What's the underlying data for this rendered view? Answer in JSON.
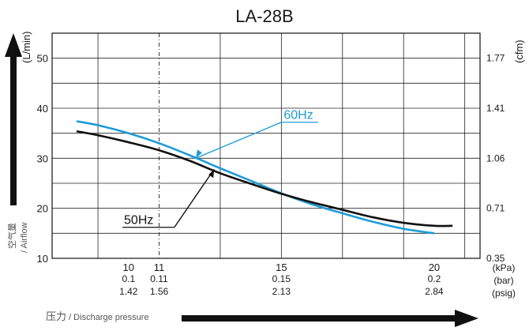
{
  "chart_data": {
    "type": "line",
    "title": "LA-28B",
    "ylabel": "(L/min)",
    "ylabel_right": "(cfm)",
    "ylabel_side_cn": "空气量",
    "ylabel_side_en": "/ Airflow",
    "xlabel_cn": "压力",
    "xlabel_en": " / Discharge pressure",
    "xlim": [
      7.5,
      21.5
    ],
    "ylim": [
      10,
      55
    ],
    "y_ticks": [
      10,
      20,
      30,
      40,
      50
    ],
    "y_ticks_right": [
      "0.35",
      "0.71",
      "1.06",
      "1.41",
      "1.77"
    ],
    "x_ticks": [
      {
        "x": 10,
        "kpa": "10",
        "bar": "0.1",
        "psig": "1.42"
      },
      {
        "x": 11,
        "kpa": "11",
        "bar": "0.11",
        "psig": "1.56"
      },
      {
        "x": 15,
        "kpa": "15",
        "bar": "0.15",
        "psig": "2.13"
      },
      {
        "x": 20,
        "kpa": "20",
        "bar": "0.2",
        "psig": "2.84"
      }
    ],
    "unit_labels": [
      "(kPa)",
      "(bar)",
      "(psig)"
    ],
    "grid": true,
    "series": [
      {
        "name": "60Hz",
        "color": "#1e9bd7",
        "x": [
          8.3,
          9.0,
          10.0,
          11.0,
          12.0,
          13.0,
          14.0,
          15.0,
          16.0,
          17.0,
          18.0,
          19.0,
          20.0
        ],
        "y": [
          37.4,
          36.6,
          35.0,
          33.0,
          30.6,
          28.0,
          25.5,
          23.0,
          20.8,
          19.0,
          17.3,
          15.9,
          15.0
        ]
      },
      {
        "name": "50Hz",
        "color": "#111111",
        "x": [
          8.3,
          9.0,
          10.0,
          11.0,
          12.0,
          13.0,
          14.0,
          15.0,
          16.0,
          17.0,
          18.0,
          19.0,
          20.0,
          20.6
        ],
        "y": [
          35.4,
          34.6,
          33.2,
          31.6,
          29.5,
          27.0,
          24.9,
          22.9,
          21.2,
          19.7,
          18.2,
          17.1,
          16.5,
          16.5
        ]
      }
    ]
  }
}
